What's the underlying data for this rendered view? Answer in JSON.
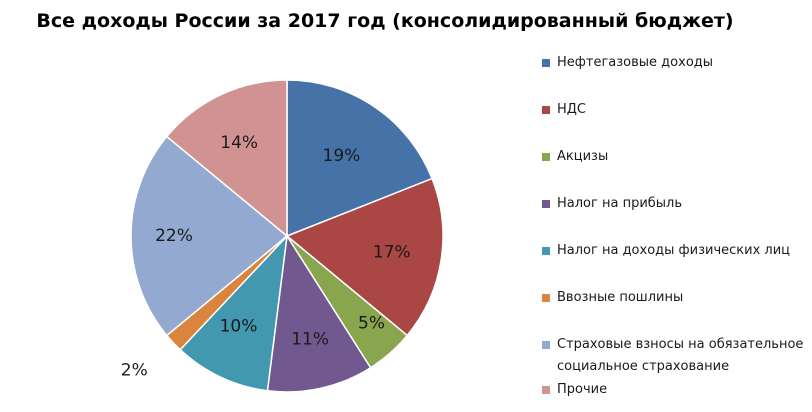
{
  "chart_data": {
    "type": "pie",
    "title": "Все доходы России за 2017 год (консолидированный бюджет)",
    "categories": [
      "Нефтегазовые доходы",
      "НДС",
      "Акцизы",
      "Налог на прибыль",
      "Налог на доходы физических лиц",
      "Ввозные пошлины",
      "Страховые взносы на обязательное социальное страхование",
      "Прочие"
    ],
    "values": [
      19,
      17,
      5,
      11,
      10,
      2,
      22,
      14
    ],
    "labels": [
      "19%",
      "17%",
      "5%",
      "11%",
      "10%",
      "2%",
      "22%",
      "14%"
    ],
    "colors": [
      "#4572A7",
      "#AA4643",
      "#89A54E",
      "#71588F",
      "#4198AF",
      "#DB843D",
      "#93A9CF",
      "#D19392"
    ],
    "legend": "right"
  }
}
